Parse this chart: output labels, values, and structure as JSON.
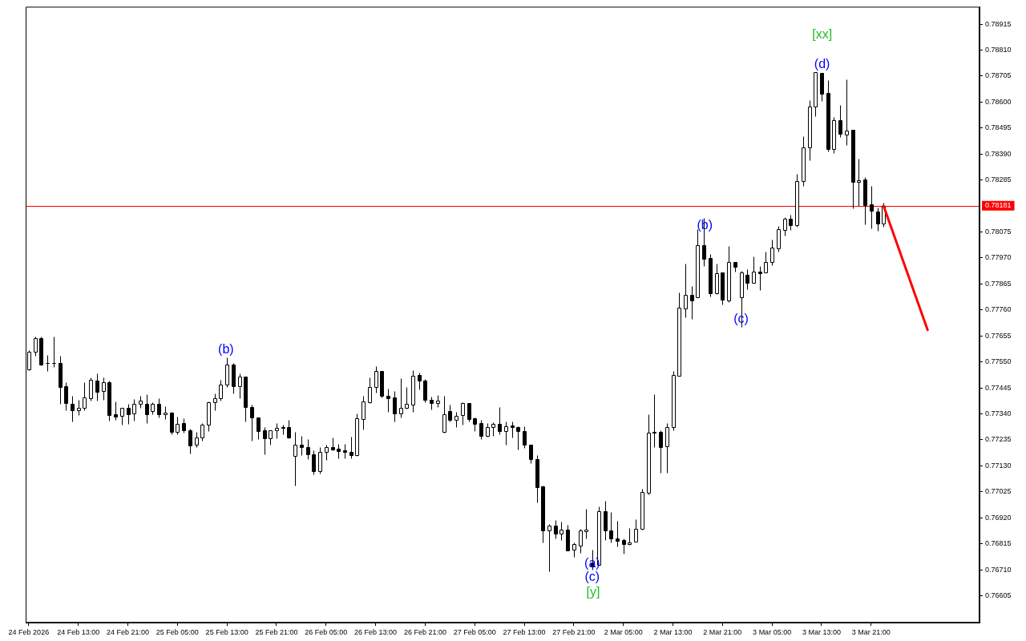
{
  "chart_data": {
    "type": "candlestick",
    "categories": [
      "24 Feb 2026",
      null,
      null,
      null,
      null,
      null,
      null,
      null,
      "24 Feb 13:00",
      null,
      null,
      null,
      null,
      null,
      null,
      null,
      "24 Feb 21:00",
      null,
      null,
      null,
      null,
      null,
      null,
      null,
      "25 Feb 05:00",
      null,
      null,
      null,
      null,
      null,
      null,
      null,
      "25 Feb 13:00",
      null,
      null,
      null,
      null,
      null,
      null,
      null,
      "25 Feb 21:00",
      null,
      null,
      null,
      null,
      null,
      null,
      null,
      "26 Feb 05:00",
      null,
      null,
      null,
      null,
      null,
      null,
      null,
      "26 Feb 13:00",
      null,
      null,
      null,
      null,
      null,
      null,
      null,
      "26 Feb 21:00",
      null,
      null,
      null,
      null,
      null,
      null,
      null,
      "27 Feb 05:00",
      null,
      null,
      null,
      null,
      null,
      null,
      null,
      "27 Feb 13:00",
      null,
      null,
      null,
      null,
      null,
      null,
      null,
      "27 Feb 21:00",
      null,
      null,
      null,
      null,
      null,
      null,
      null,
      "2 Mar 05:00",
      null,
      null,
      null,
      null,
      null,
      null,
      null,
      "2 Mar 13:00",
      null,
      null,
      null,
      null,
      null,
      null,
      null,
      "2 Mar 21:00",
      null,
      null,
      null,
      null,
      null,
      null,
      null,
      "3 Mar 05:00",
      null,
      null,
      null,
      null,
      null,
      null,
      null,
      "3 Mar 13:00",
      null,
      null,
      null,
      null,
      null,
      null,
      null,
      "3 Mar 21:00",
      null,
      null,
      null,
      null,
      null,
      null,
      null,
      null,
      null,
      null,
      null,
      null,
      null,
      null,
      null,
      null,
      null
    ],
    "ohlc": [
      [
        0.77521,
        0.77598,
        0.77518,
        0.77592
      ],
      [
        0.77591,
        0.77653,
        0.77575,
        0.77646
      ],
      [
        0.77646,
        0.77653,
        0.77535,
        0.77539
      ],
      [
        0.77545,
        0.77578,
        0.77514,
        0.77544
      ],
      [
        0.77545,
        0.77653,
        0.77529,
        0.77544
      ],
      [
        0.77546,
        0.77575,
        0.7738,
        0.7745
      ],
      [
        0.77451,
        0.77467,
        0.77356,
        0.77384
      ],
      [
        0.77382,
        0.77412,
        0.77308,
        0.77356
      ],
      [
        0.77356,
        0.77396,
        0.77336,
        0.77364
      ],
      [
        0.77365,
        0.77467,
        0.77356,
        0.77405
      ],
      [
        0.77403,
        0.77486,
        0.77395,
        0.77476
      ],
      [
        0.77473,
        0.77502,
        0.77393,
        0.77429
      ],
      [
        0.77432,
        0.77488,
        0.77397,
        0.77467
      ],
      [
        0.77467,
        0.77473,
        0.77314,
        0.77336
      ],
      [
        0.77339,
        0.7739,
        0.77317,
        0.7733
      ],
      [
        0.77331,
        0.77363,
        0.77295,
        0.77363
      ],
      [
        0.77363,
        0.77382,
        0.77301,
        0.7734
      ],
      [
        0.77342,
        0.774,
        0.77314,
        0.77379
      ],
      [
        0.77379,
        0.77412,
        0.77363,
        0.77393
      ],
      [
        0.77382,
        0.77419,
        0.77304,
        0.7734
      ],
      [
        0.7735,
        0.77387,
        0.7734,
        0.77379
      ],
      [
        0.77379,
        0.77402,
        0.77327,
        0.7734
      ],
      [
        0.77338,
        0.7737,
        0.7732,
        0.77344
      ],
      [
        0.77345,
        0.77348,
        0.77256,
        0.77267
      ],
      [
        0.77267,
        0.77329,
        0.77256,
        0.773
      ],
      [
        0.77303,
        0.77322,
        0.77265,
        0.77274
      ],
      [
        0.77274,
        0.7728,
        0.77179,
        0.77211
      ],
      [
        0.77216,
        0.77267,
        0.77205,
        0.77246
      ],
      [
        0.77243,
        0.77304,
        0.77233,
        0.77297
      ],
      [
        0.77296,
        0.7739,
        0.7727,
        0.77387
      ],
      [
        0.77386,
        0.77422,
        0.77356,
        0.77402
      ],
      [
        0.77402,
        0.77476,
        0.77393,
        0.77459
      ],
      [
        0.77459,
        0.77569,
        0.77448,
        0.77539
      ],
      [
        0.7754,
        0.77547,
        0.77423,
        0.77452
      ],
      [
        0.77453,
        0.77502,
        0.77404,
        0.77491
      ],
      [
        0.77491,
        0.77491,
        0.7731,
        0.77366
      ],
      [
        0.77366,
        0.77377,
        0.77231,
        0.77324
      ],
      [
        0.77326,
        0.77326,
        0.77237,
        0.77272
      ],
      [
        0.77274,
        0.77286,
        0.77176,
        0.7724
      ],
      [
        0.7724,
        0.77274,
        0.77214,
        0.77274
      ],
      [
        0.77274,
        0.77302,
        0.77241,
        0.77283
      ],
      [
        0.77286,
        0.77297,
        0.77259,
        0.77282
      ],
      [
        0.77286,
        0.77315,
        0.77241,
        0.77246
      ],
      [
        0.77171,
        0.77268,
        0.77051,
        0.77216
      ],
      [
        0.77214,
        0.77252,
        0.77173,
        0.77205
      ],
      [
        0.77207,
        0.77239,
        0.77156,
        0.77176
      ],
      [
        0.77178,
        0.77192,
        0.77096,
        0.77109
      ],
      [
        0.7711,
        0.77206,
        0.77099,
        0.77187
      ],
      [
        0.77187,
        0.77214,
        0.77155,
        0.77206
      ],
      [
        0.77206,
        0.77246,
        0.77192,
        0.77195
      ],
      [
        0.77198,
        0.77217,
        0.7716,
        0.7719
      ],
      [
        0.77194,
        0.77217,
        0.7716,
        0.77187
      ],
      [
        0.77187,
        0.77249,
        0.7716,
        0.77174
      ],
      [
        0.77174,
        0.77342,
        0.77171,
        0.77322
      ],
      [
        0.7732,
        0.77414,
        0.77278,
        0.77389
      ],
      [
        0.77388,
        0.77486,
        0.77384,
        0.7745
      ],
      [
        0.77448,
        0.77534,
        0.77425,
        0.77514
      ],
      [
        0.77514,
        0.77514,
        0.77407,
        0.77412
      ],
      [
        0.77414,
        0.77441,
        0.77348,
        0.77404
      ],
      [
        0.77406,
        0.77431,
        0.77308,
        0.77342
      ],
      [
        0.77342,
        0.77483,
        0.77326,
        0.77363
      ],
      [
        0.77365,
        0.77448,
        0.77361,
        0.77379
      ],
      [
        0.77378,
        0.77515,
        0.77348,
        0.77495
      ],
      [
        0.77498,
        0.77508,
        0.77438,
        0.77474
      ],
      [
        0.77473,
        0.77482,
        0.77387,
        0.77396
      ],
      [
        0.77398,
        0.77409,
        0.77359,
        0.77384
      ],
      [
        0.77384,
        0.77416,
        0.77367,
        0.77392
      ],
      [
        0.77266,
        0.77412,
        0.77263,
        0.77338
      ],
      [
        0.7735,
        0.77377,
        0.77308,
        0.77315
      ],
      [
        0.77315,
        0.77348,
        0.77288,
        0.77331
      ],
      [
        0.77334,
        0.77388,
        0.77295,
        0.77383
      ],
      [
        0.77383,
        0.77383,
        0.7731,
        0.7732
      ],
      [
        0.77322,
        0.77326,
        0.77272,
        0.77301
      ],
      [
        0.77302,
        0.77316,
        0.77237,
        0.7725
      ],
      [
        0.7725,
        0.77302,
        0.77247,
        0.77286
      ],
      [
        0.77286,
        0.77306,
        0.77251,
        0.77299
      ],
      [
        0.77299,
        0.77366,
        0.77258,
        0.77272
      ],
      [
        0.77272,
        0.7731,
        0.77215,
        0.7729
      ],
      [
        0.77294,
        0.7731,
        0.77246,
        0.77285
      ],
      [
        0.77286,
        0.77291,
        0.77195,
        0.77269
      ],
      [
        0.7727,
        0.77291,
        0.77201,
        0.77215
      ],
      [
        0.77216,
        0.77216,
        0.77141,
        0.77158
      ],
      [
        0.77158,
        0.77174,
        0.76981,
        0.77045
      ],
      [
        0.77046,
        0.77049,
        0.7682,
        0.76869
      ],
      [
        0.7687,
        0.76895,
        0.76704,
        0.76889
      ],
      [
        0.76889,
        0.76911,
        0.76835,
        0.76857
      ],
      [
        0.76857,
        0.76905,
        0.7683,
        0.76873
      ],
      [
        0.76873,
        0.76892,
        0.76788,
        0.76788
      ],
      [
        0.76792,
        0.76819,
        0.76763,
        0.76813
      ],
      [
        0.76809,
        0.76876,
        0.76779,
        0.7687
      ],
      [
        0.76867,
        0.76957,
        0.76838,
        0.76873
      ],
      [
        0.76735,
        0.76791,
        0.7671,
        0.76724
      ],
      [
        0.76731,
        0.76967,
        0.76731,
        0.76947
      ],
      [
        0.76947,
        0.76989,
        0.76831,
        0.76869
      ],
      [
        0.7687,
        0.76943,
        0.7682,
        0.76836
      ],
      [
        0.76838,
        0.76908,
        0.76804,
        0.76827
      ],
      [
        0.76829,
        0.76836,
        0.76776,
        0.76814
      ],
      [
        0.76815,
        0.76878,
        0.76811,
        0.76822
      ],
      [
        0.76824,
        0.76915,
        0.76824,
        0.76877
      ],
      [
        0.76875,
        0.77036,
        0.76873,
        0.77025
      ],
      [
        0.77022,
        0.77339,
        0.77016,
        0.77265
      ],
      [
        0.77267,
        0.77419,
        0.77205,
        0.77263
      ],
      [
        0.77267,
        0.77274,
        0.77102,
        0.77205
      ],
      [
        0.77209,
        0.77302,
        0.77102,
        0.77286
      ],
      [
        0.77286,
        0.77513,
        0.77274,
        0.77498
      ],
      [
        0.77495,
        0.77829,
        0.77495,
        0.77769
      ],
      [
        0.77767,
        0.77947,
        0.77729,
        0.7782
      ],
      [
        0.7782,
        0.77857,
        0.77724,
        0.77799
      ],
      [
        0.77812,
        0.78087,
        0.77812,
        0.7802
      ],
      [
        0.78021,
        0.7813,
        0.77936,
        0.77968
      ],
      [
        0.77969,
        0.77986,
        0.77815,
        0.77828
      ],
      [
        0.77827,
        0.77947,
        0.77825,
        0.77908
      ],
      [
        0.77911,
        0.77911,
        0.77783,
        0.77801
      ],
      [
        0.77798,
        0.78018,
        0.77791,
        0.77953
      ],
      [
        0.77953,
        0.77953,
        0.77914,
        0.77934
      ],
      [
        0.77812,
        0.77919,
        0.77692,
        0.77911
      ],
      [
        0.77902,
        0.77925,
        0.77842,
        0.77868
      ],
      [
        0.7787,
        0.77976,
        0.7787,
        0.77914
      ],
      [
        0.77914,
        0.77938,
        0.77839,
        0.77908
      ],
      [
        0.7791,
        0.77995,
        0.7791,
        0.77953
      ],
      [
        0.77953,
        0.78044,
        0.77941,
        0.78011
      ],
      [
        0.78007,
        0.78098,
        0.77994,
        0.78085
      ],
      [
        0.78084,
        0.78136,
        0.78059,
        0.78129
      ],
      [
        0.78129,
        0.78143,
        0.78083,
        0.78103
      ],
      [
        0.78103,
        0.78309,
        0.78096,
        0.7828
      ],
      [
        0.78282,
        0.78463,
        0.78261,
        0.78417
      ],
      [
        0.78417,
        0.78607,
        0.78365,
        0.78582
      ],
      [
        0.78581,
        0.7872,
        0.78544,
        0.7872
      ],
      [
        0.78716,
        0.78716,
        0.78605,
        0.78634
      ],
      [
        0.78636,
        0.78688,
        0.78399,
        0.7841
      ],
      [
        0.7841,
        0.7854,
        0.78394,
        0.78527
      ],
      [
        0.78527,
        0.78588,
        0.78459,
        0.78472
      ],
      [
        0.78469,
        0.78692,
        0.78425,
        0.78486
      ],
      [
        0.78487,
        0.78487,
        0.78169,
        0.78276
      ],
      [
        0.78276,
        0.78371,
        0.7818,
        0.78284
      ],
      [
        0.78287,
        0.78296,
        0.78105,
        0.78185
      ],
      [
        0.78188,
        0.7826,
        0.78091,
        0.78162
      ],
      [
        0.78159,
        0.78173,
        0.7808,
        0.78109
      ],
      [
        0.78109,
        0.78194,
        0.78096,
        0.78181
      ],
      null,
      null,
      null,
      null,
      null,
      null,
      null,
      null,
      null,
      null,
      null,
      null,
      null,
      null,
      null
    ],
    "ylim": [
      0.76496,
      0.78985
    ],
    "yticks": [
      {
        "value": 0.76605,
        "label": "0.76605"
      },
      {
        "value": 0.7671,
        "label": "0.76710"
      },
      {
        "value": 0.76815,
        "label": "0.76815"
      },
      {
        "value": 0.7692,
        "label": "0.76920"
      },
      {
        "value": 0.77025,
        "label": "0.77025"
      },
      {
        "value": 0.7713,
        "label": "0.77130"
      },
      {
        "value": 0.77235,
        "label": "0.77235"
      },
      {
        "value": 0.7734,
        "label": "0.77340"
      },
      {
        "value": 0.77445,
        "label": "0.77445"
      },
      {
        "value": 0.7755,
        "label": "0.77550"
      },
      {
        "value": 0.77655,
        "label": "0.77655"
      },
      {
        "value": 0.7776,
        "label": "0.77760"
      },
      {
        "value": 0.77865,
        "label": "0.77865"
      },
      {
        "value": 0.7797,
        "label": "0.77970"
      },
      {
        "value": 0.78075,
        "label": "0.78075"
      },
      {
        "value": 0.78285,
        "label": "0.78285"
      },
      {
        "value": 0.7839,
        "label": "0.78390"
      },
      {
        "value": 0.78495,
        "label": "0.78495"
      },
      {
        "value": 0.786,
        "label": "0.78600"
      },
      {
        "value": 0.78705,
        "label": "0.78705"
      },
      {
        "value": 0.7881,
        "label": "0.78810"
      },
      {
        "value": 0.78915,
        "label": "0.78915"
      }
    ],
    "grid": false,
    "legend": false,
    "ref_lines": [
      {
        "axis": "y",
        "value": 0.78181,
        "label": "0.78181",
        "color": "#ff0000"
      }
    ],
    "annotations": [
      "(b)",
      "(a)",
      "(c)",
      "[y]",
      "(b)",
      "(c)",
      "[xx]",
      "(d)"
    ]
  }
}
